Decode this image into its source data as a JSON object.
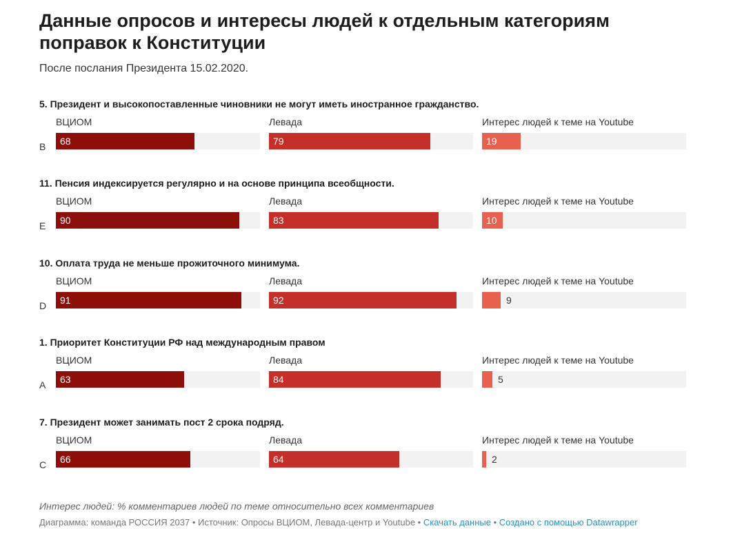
{
  "title": "Данные опросов и интересы людей к отдельным категориям поправок к Конституции",
  "subtitle": "После послания Президента 15.02.2020.",
  "colors": {
    "vciom": "#8e0f0a",
    "levada": "#c42f29",
    "youtube": "#e8604e",
    "track": "#f2f2f2"
  },
  "chart_data": {
    "type": "bar",
    "title": "Данные опросов и интересы людей к отдельным категориям поправок к Конституции",
    "subtitle": "После послания Президента 15.02.2020.",
    "columns": [
      "ВЦИОМ",
      "Левада",
      "Интерес людей к теме на Youtube"
    ],
    "ylim": [
      0,
      100
    ],
    "groups": [
      {
        "question": "5. Президент и высокопоставленные чиновники не могут иметь иностранное гражданство.",
        "row_label": "B",
        "values": [
          68,
          79,
          19
        ]
      },
      {
        "question": "11. Пенсия индексируется регулярно и на основе принципа всеобщности.",
        "row_label": "E",
        "values": [
          90,
          83,
          10
        ]
      },
      {
        "question": "10. Оплата труда не меньше прожиточного минимума.",
        "row_label": "D",
        "values": [
          91,
          92,
          9
        ]
      },
      {
        "question": "1. Приоритет Конституции РФ над международным правом",
        "row_label": "A",
        "values": [
          63,
          84,
          5
        ]
      },
      {
        "question": "7. Президент может занимать пост 2 срока подряд.",
        "row_label": "C",
        "values": [
          66,
          64,
          2
        ]
      }
    ]
  },
  "footer": {
    "note": "Интерес людей: % комментариев людей по теме относительно всех комментариев",
    "source_text": "Диаграмма: команда РОССИЯ 2037 • Источник: Опросы ВЦИОМ, Левада-центр и Youtube • ",
    "download_link": "Скачать данные",
    "separator": " • ",
    "datawrapper_link": "Создано с помощью Datawrapper"
  }
}
